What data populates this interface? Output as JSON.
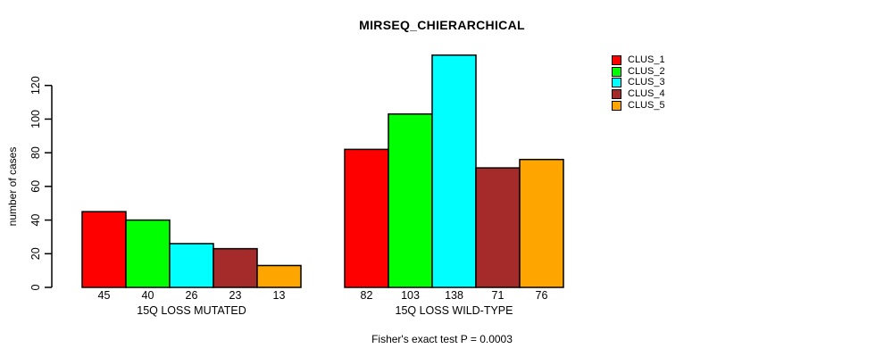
{
  "chart_data": {
    "type": "bar",
    "title": "MIRSEQ_CHIERARCHICAL",
    "ylabel": "number of cases",
    "caption": "Fisher's exact test P = 0.0003",
    "yticks": [
      0,
      20,
      40,
      60,
      80,
      100,
      120
    ],
    "ylim": [
      0,
      140
    ],
    "grid": false,
    "legend_position": "top-right",
    "categories": [
      "15Q LOSS MUTATED",
      "15Q LOSS WILD-TYPE"
    ],
    "groups": [
      {
        "label": "15Q LOSS MUTATED",
        "values": [
          45,
          40,
          26,
          23,
          13
        ]
      },
      {
        "label": "15Q LOSS WILD-TYPE",
        "values": [
          82,
          103,
          138,
          71,
          76
        ]
      }
    ],
    "series": [
      {
        "name": "CLUS_1",
        "values": [
          45,
          82
        ]
      },
      {
        "name": "CLUS_2",
        "values": [
          40,
          103
        ]
      },
      {
        "name": "CLUS_3",
        "values": [
          26,
          138
        ]
      },
      {
        "name": "CLUS_4",
        "values": [
          23,
          71
        ]
      },
      {
        "name": "CLUS_5",
        "values": [
          13,
          76
        ]
      }
    ],
    "series_colors": [
      "#FF0000",
      "#00FF00",
      "#00FFFF",
      "#A52A2A",
      "#FFA500"
    ],
    "legend": [
      {
        "label": "CLUS_1",
        "color": "#FF0000"
      },
      {
        "label": "CLUS_2",
        "color": "#00FF00"
      },
      {
        "label": "CLUS_3",
        "color": "#00FFFF"
      },
      {
        "label": "CLUS_4",
        "color": "#A52A2A"
      },
      {
        "label": "CLUS_5",
        "color": "#FFA500"
      }
    ],
    "bar_value_labels": [
      45,
      40,
      26,
      23,
      13,
      82,
      103,
      138,
      71,
      76
    ],
    "axis_color": "#000000",
    "bar_border_color": "#000000"
  }
}
